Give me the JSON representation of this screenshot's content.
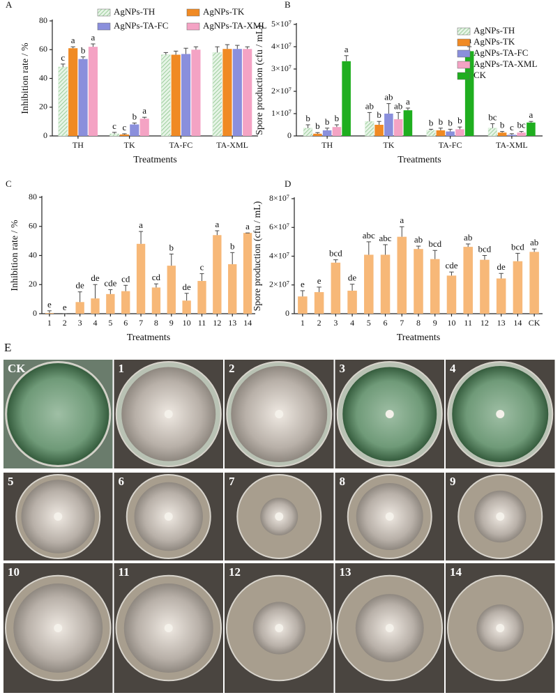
{
  "chart_data": [
    {
      "type": "bar",
      "title": "A",
      "x_label": "Treatments",
      "y_label": "Inhibition rate / %",
      "categories": [
        "TH",
        "TK",
        "TA-FC",
        "TA-XML"
      ],
      "series": [
        {
          "name": "AgNPs-TH",
          "color": "#cde9cd",
          "pattern": "hatch",
          "values": [
            48,
            1.5,
            56.5,
            58
          ],
          "errors": [
            2,
            1,
            1.5,
            4
          ],
          "letters": [
            "c",
            "c",
            null,
            null
          ]
        },
        {
          "name": "AgNPs-TK",
          "color": "#f08a24",
          "values": [
            61,
            1,
            56.5,
            60.5
          ],
          "errors": [
            1,
            0.5,
            2.5,
            3
          ],
          "letters": [
            "a",
            "c",
            null,
            null
          ]
        },
        {
          "name": "AgNPs-TA-FC",
          "color": "#8a8fdc",
          "values": [
            53.5,
            8,
            57,
            60.5
          ],
          "errors": [
            1.5,
            1,
            4,
            2.5
          ],
          "letters": [
            "b",
            "b",
            null,
            null
          ]
        },
        {
          "name": "AgNPs-TA-XML",
          "color": "#f4a3c4",
          "values": [
            62,
            12,
            60,
            60.5
          ],
          "errors": [
            2,
            1,
            2,
            1.5
          ],
          "letters": [
            "a",
            "a",
            null,
            null
          ]
        }
      ],
      "ylim": [
        0,
        80
      ],
      "yticks": [
        0,
        20,
        40,
        60,
        80
      ],
      "legend": "top"
    },
    {
      "type": "bar",
      "title": "B",
      "x_label": "Treatments",
      "y_label": "Spore production (cfu / mL)",
      "categories": [
        "TH",
        "TK",
        "TA-FC",
        "TA-XML"
      ],
      "series": [
        {
          "name": "AgNPs-TH",
          "color": "#cde9cd",
          "pattern": "hatch",
          "values": [
            3500000,
            6500000,
            2500000,
            3500000
          ],
          "errors": [
            1500000,
            4000000,
            500000,
            2000000
          ],
          "letters": [
            "b",
            "ab",
            "b",
            "bc"
          ]
        },
        {
          "name": "AgNPs-TK",
          "color": "#f08a24",
          "values": [
            1000000,
            5000000,
            2500000,
            1500000
          ],
          "errors": [
            500000,
            1500000,
            1000000,
            500000
          ],
          "letters": [
            "b",
            "b",
            "b",
            "b"
          ]
        },
        {
          "name": "AgNPs-TA-FC",
          "color": "#8a8fdc",
          "values": [
            2500000,
            10000000,
            2000000,
            500000
          ],
          "errors": [
            1000000,
            4500000,
            1000000,
            500000
          ],
          "letters": [
            "b",
            "ab",
            "b",
            "c"
          ]
        },
        {
          "name": "AgNPs-TA-XML",
          "color": "#f4a3c4",
          "values": [
            4000000,
            7500000,
            3000000,
            1500000
          ],
          "errors": [
            1000000,
            3000000,
            1000000,
            500000
          ],
          "letters": [
            "b",
            "ab",
            "b",
            "bc"
          ]
        },
        {
          "name": "CK",
          "color": "#1fae1f",
          "values": [
            33500000,
            11500000,
            38000000,
            6000000
          ],
          "errors": [
            2500000,
            1000000,
            2000000,
            500000
          ],
          "letters": [
            "a",
            "a",
            "a",
            "a"
          ]
        }
      ],
      "ylim": [
        0,
        50000000
      ],
      "yticks": [
        0,
        {
          "value": 10000000,
          "label": "1×10⁷"
        },
        {
          "value": 20000000,
          "label": "2×10⁷"
        },
        {
          "value": 30000000,
          "label": "3×10⁷"
        },
        {
          "value": 40000000,
          "label": "4×10⁷"
        },
        {
          "value": 50000000,
          "label": "5×10⁷"
        }
      ],
      "legend": "top-right"
    },
    {
      "type": "bar",
      "title": "C",
      "x_label": "Treatments",
      "y_label": "Inhibition rate / %",
      "categories": [
        "1",
        "2",
        "3",
        "4",
        "5",
        "6",
        "7",
        "8",
        "9",
        "10",
        "11",
        "12",
        "13",
        "14"
      ],
      "values": [
        0.5,
        0,
        8,
        10.5,
        13.5,
        15.5,
        48,
        18,
        33,
        9,
        22.5,
        54,
        34,
        55.5
      ],
      "errors": [
        1.5,
        0,
        7,
        9.5,
        3,
        4,
        8.5,
        2.5,
        8,
        5,
        5,
        3,
        8,
        0
      ],
      "letters": [
        "e",
        "e",
        "de",
        "de",
        "cde",
        "cd",
        "a",
        "cd",
        "b",
        "de",
        "c",
        "a",
        "b",
        "a"
      ],
      "color": "#f7b878",
      "ylim": [
        0,
        80
      ],
      "yticks": [
        0,
        20,
        40,
        60,
        80
      ]
    },
    {
      "type": "bar",
      "title": "D",
      "x_label": "Treatments",
      "y_label": "Spore production (cfu / mL)",
      "categories": [
        "1",
        "2",
        "3",
        "4",
        "5",
        "6",
        "7",
        "8",
        "9",
        "10",
        "11",
        "12",
        "13",
        "14",
        "CK"
      ],
      "values": [
        12000000,
        15000000,
        35500000,
        16000000,
        41000000,
        41000000,
        53500000,
        45000000,
        38000000,
        26500000,
        46500000,
        37500000,
        24500000,
        36500000,
        43000000
      ],
      "errors": [
        4000000,
        3500000,
        2000000,
        4500000,
        9000000,
        7000000,
        7000000,
        2000000,
        6000000,
        2500000,
        2000000,
        3000000,
        3500000,
        5500000,
        2000000
      ],
      "letters": [
        "e",
        "e",
        "bcd",
        "de",
        "abc",
        "abc",
        "a",
        "ab",
        "bcd",
        "cde",
        "ab",
        "bcd",
        "de",
        "bcd",
        "ab"
      ],
      "color": "#f7b878",
      "ylim": [
        0,
        80000000
      ],
      "yticks": [
        0,
        {
          "value": 20000000,
          "label": "2×10⁷"
        },
        {
          "value": 40000000,
          "label": "4×10⁷"
        },
        {
          "value": 60000000,
          "label": "6×10⁷"
        },
        {
          "value": 80000000,
          "label": "8×10⁷"
        }
      ]
    }
  ],
  "photos": {
    "title": "E",
    "plates": [
      "CK",
      "1",
      "2",
      "3",
      "4",
      "5",
      "6",
      "7",
      "8",
      "9",
      "10",
      "11",
      "12",
      "13",
      "14"
    ]
  }
}
